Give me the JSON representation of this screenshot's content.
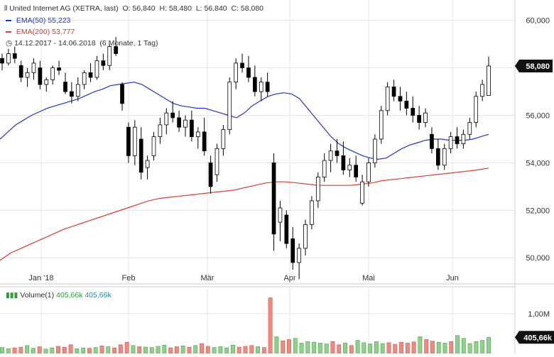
{
  "header": {
    "title": "United Internet AG (XETRA, last)",
    "open_label": "O:",
    "open": "56,840",
    "high_label": "H:",
    "high": "58,480",
    "low_label": "L:",
    "low": "56,840",
    "close_label": "C:",
    "close": "58,080",
    "range": "14.12.2017 - 14.06.2018",
    "interval": "(6 Monate, 1 Tag)"
  },
  "legend": {
    "ema50_label": "EMA(50)",
    "ema50_value": "55,223",
    "ema200_label": "EMA(200)",
    "ema200_value": "53,777"
  },
  "volume_legend": {
    "label": "Volume(1)",
    "value1": "405,66k",
    "value2": "405,66k"
  },
  "colors": {
    "up": "#ffffff",
    "down": "#000000",
    "ema50": "#2233cc",
    "ema200": "#e03a2e",
    "vol_up": "#8fd08a",
    "vol_down": "#f08a80",
    "grid": "#e4e4e4"
  },
  "chart_data": [
    {
      "type": "candlestick",
      "title": "United Internet AG (XETRA, last)",
      "x_tick_labels": [
        "Jan '18",
        "Feb",
        "Mär",
        "Apr",
        "Mai",
        "Jun"
      ],
      "y_tick_labels": [
        "50,000",
        "52,000",
        "54,000",
        "56,000",
        "58,000",
        "60,000"
      ],
      "y_ticks": [
        50,
        52,
        54,
        56,
        58,
        60
      ],
      "ylim": [
        48.9,
        60.5
      ],
      "grid": true,
      "last_price_label": "58,080",
      "last_price": 58.08,
      "series": [
        {
          "name": "EMA(50)",
          "values": [
            55.0,
            55.3,
            55.6,
            55.8,
            56.0,
            56.15,
            56.3,
            56.4,
            56.5,
            56.6,
            56.7,
            56.85,
            57.0,
            57.1,
            57.25,
            57.3,
            57.35,
            57.4,
            57.3,
            57.1,
            56.9,
            56.7,
            56.5,
            56.4,
            56.35,
            56.3,
            56.3,
            56.2,
            56.1,
            56.0,
            55.9,
            56.1,
            56.4,
            56.6,
            56.8,
            56.9,
            56.95,
            56.9,
            56.7,
            56.3,
            55.9,
            55.5,
            55.1,
            54.8,
            54.6,
            54.45,
            54.3,
            54.2,
            54.15,
            54.2,
            54.4,
            54.6,
            54.75,
            54.85,
            54.95,
            55.0,
            55.0,
            54.95,
            54.95,
            54.95,
            55.0,
            55.1,
            55.2
          ]
        },
        {
          "name": "EMA(200)",
          "values": [
            49.9,
            50.2,
            50.4,
            50.6,
            50.8,
            51.0,
            51.2,
            51.35,
            51.5,
            51.65,
            51.8,
            51.95,
            52.1,
            52.25,
            52.4,
            52.5,
            52.55,
            52.6,
            52.65,
            52.7,
            52.75,
            52.8,
            52.85,
            52.95,
            53.05,
            53.15,
            53.2,
            53.2,
            53.15,
            53.1,
            53.05,
            53.05,
            53.05,
            53.05,
            53.1,
            53.15,
            53.25,
            53.3,
            53.35,
            53.4,
            53.45,
            53.5,
            53.55,
            53.6,
            53.65,
            53.7,
            53.78
          ]
        }
      ],
      "candles": [
        [
          58.4,
          58.6,
          57.9,
          58.2
        ],
        [
          58.2,
          58.8,
          58.1,
          58.6
        ],
        [
          58.6,
          58.9,
          58.2,
          58.4
        ],
        [
          58.1,
          58.3,
          57.4,
          57.6
        ],
        [
          57.6,
          58.0,
          57.2,
          57.8
        ],
        [
          57.8,
          58.4,
          57.5,
          58.2
        ],
        [
          58.0,
          58.3,
          57.1,
          57.3
        ],
        [
          57.3,
          57.6,
          57.0,
          57.5
        ],
        [
          57.5,
          58.1,
          57.3,
          58.0
        ],
        [
          58.0,
          58.3,
          57.7,
          57.9
        ],
        [
          57.4,
          57.8,
          56.9,
          57.0
        ],
        [
          57.0,
          57.4,
          56.5,
          56.8
        ],
        [
          56.8,
          57.6,
          56.6,
          57.3
        ],
        [
          57.3,
          57.9,
          57.1,
          57.8
        ],
        [
          57.8,
          58.2,
          57.4,
          57.6
        ],
        [
          57.6,
          58.5,
          57.5,
          58.3
        ],
        [
          58.3,
          58.6,
          57.9,
          58.1
        ],
        [
          58.1,
          59.0,
          57.9,
          58.9
        ],
        [
          58.9,
          59.3,
          58.5,
          58.6
        ],
        [
          57.3,
          57.4,
          56.2,
          56.5
        ],
        [
          55.5,
          55.7,
          54.0,
          54.3
        ],
        [
          54.3,
          55.8,
          53.9,
          55.5
        ],
        [
          55.0,
          55.5,
          53.3,
          53.6
        ],
        [
          53.8,
          54.3,
          53.3,
          54.1
        ],
        [
          54.3,
          55.3,
          54.1,
          55.1
        ],
        [
          55.1,
          55.9,
          54.8,
          55.6
        ],
        [
          55.6,
          56.3,
          55.2,
          56.1
        ],
        [
          56.1,
          56.6,
          55.7,
          55.9
        ],
        [
          55.9,
          56.2,
          55.3,
          55.5
        ],
        [
          55.5,
          56.0,
          55.1,
          55.8
        ],
        [
          55.8,
          56.2,
          54.9,
          55.1
        ],
        [
          55.1,
          55.5,
          54.6,
          55.3
        ],
        [
          55.3,
          55.9,
          54.3,
          54.5
        ],
        [
          54.0,
          54.3,
          52.7,
          53.0
        ],
        [
          53.5,
          54.8,
          53.2,
          54.6
        ],
        [
          54.6,
          55.6,
          54.3,
          55.4
        ],
        [
          55.4,
          57.6,
          55.2,
          57.4
        ],
        [
          57.4,
          58.4,
          57.1,
          58.2
        ],
        [
          58.2,
          58.6,
          57.8,
          58.0
        ],
        [
          58.0,
          58.5,
          57.4,
          57.6
        ],
        [
          57.6,
          58.1,
          56.8,
          57.0
        ],
        [
          57.0,
          57.6,
          56.6,
          57.4
        ],
        [
          57.4,
          57.8,
          56.8,
          57.0
        ],
        [
          54.0,
          54.4,
          50.3,
          51.0
        ],
        [
          51.5,
          52.4,
          50.7,
          52.1
        ],
        [
          51.8,
          52.0,
          50.4,
          50.6
        ],
        [
          50.8,
          51.3,
          49.5,
          49.8
        ],
        [
          49.8,
          50.6,
          49.1,
          50.4
        ],
        [
          50.4,
          51.6,
          50.1,
          51.4
        ],
        [
          51.4,
          52.6,
          51.2,
          52.4
        ],
        [
          52.4,
          53.6,
          52.1,
          53.4
        ],
        [
          53.4,
          54.4,
          53.2,
          54.1
        ],
        [
          54.1,
          54.8,
          53.6,
          54.5
        ],
        [
          54.5,
          55.0,
          54.0,
          54.3
        ],
        [
          54.3,
          54.9,
          53.5,
          53.7
        ],
        [
          53.7,
          54.2,
          53.4,
          53.9
        ],
        [
          53.9,
          54.3,
          53.2,
          53.4
        ],
        [
          52.3,
          53.5,
          52.2,
          53.2
        ],
        [
          53.2,
          54.2,
          53.0,
          54.0
        ],
        [
          54.0,
          55.2,
          53.8,
          55.0
        ],
        [
          55.0,
          56.4,
          54.8,
          56.2
        ],
        [
          56.2,
          57.4,
          56.0,
          57.2
        ],
        [
          57.2,
          57.5,
          56.6,
          56.8
        ],
        [
          56.8,
          57.2,
          56.2,
          56.6
        ],
        [
          56.6,
          57.0,
          56.0,
          56.3
        ],
        [
          56.3,
          56.8,
          55.7,
          56.0
        ],
        [
          56.0,
          56.4,
          55.4,
          55.7
        ],
        [
          55.7,
          56.3,
          55.5,
          56.1
        ],
        [
          55.2,
          55.5,
          54.4,
          54.6
        ],
        [
          54.6,
          55.0,
          53.7,
          53.9
        ],
        [
          53.9,
          54.8,
          53.7,
          54.6
        ],
        [
          54.6,
          55.3,
          54.4,
          55.1
        ],
        [
          55.1,
          55.5,
          54.6,
          54.8
        ],
        [
          54.8,
          55.4,
          54.6,
          55.2
        ],
        [
          55.2,
          55.9,
          55.0,
          55.7
        ],
        [
          55.7,
          57.0,
          55.5,
          56.8
        ],
        [
          56.8,
          57.5,
          56.6,
          57.3
        ],
        [
          56.84,
          58.48,
          56.84,
          58.08
        ]
      ]
    },
    {
      "type": "bar",
      "title": "Volume(1)",
      "y_tick_labels": [
        "1,00M"
      ],
      "y_ticks": [
        1000
      ],
      "ylim": [
        0,
        1500
      ],
      "last_value_label": "405,66k",
      "values": [
        150,
        120,
        140,
        160,
        200,
        130,
        170,
        110,
        140,
        180,
        160,
        220,
        120,
        140,
        130,
        150,
        190,
        170,
        140,
        220,
        280,
        200,
        170,
        160,
        150,
        180,
        210,
        140,
        170,
        190,
        160,
        200,
        250,
        180,
        150,
        170,
        140,
        210,
        160,
        180,
        200,
        170,
        150,
        1400,
        420,
        320,
        350,
        380,
        260,
        300,
        280,
        260,
        240,
        300,
        220,
        260,
        200,
        330,
        270,
        240,
        300,
        250,
        270,
        230,
        280,
        260,
        290,
        420,
        350,
        310,
        280,
        260,
        300,
        450,
        380,
        250,
        300,
        330,
        406
      ],
      "ups": [
        1,
        1,
        0,
        0,
        1,
        1,
        0,
        1,
        1,
        0,
        0,
        0,
        1,
        1,
        0,
        1,
        0,
        1,
        0,
        0,
        0,
        1,
        0,
        1,
        1,
        1,
        1,
        0,
        0,
        1,
        0,
        1,
        0,
        0,
        1,
        1,
        1,
        1,
        0,
        0,
        0,
        1,
        0,
        0,
        1,
        0,
        0,
        1,
        1,
        1,
        1,
        1,
        1,
        0,
        0,
        1,
        0,
        1,
        1,
        1,
        1,
        1,
        0,
        0,
        0,
        0,
        0,
        1,
        0,
        0,
        1,
        1,
        0,
        1,
        1,
        1,
        1,
        1,
        1
      ]
    }
  ]
}
